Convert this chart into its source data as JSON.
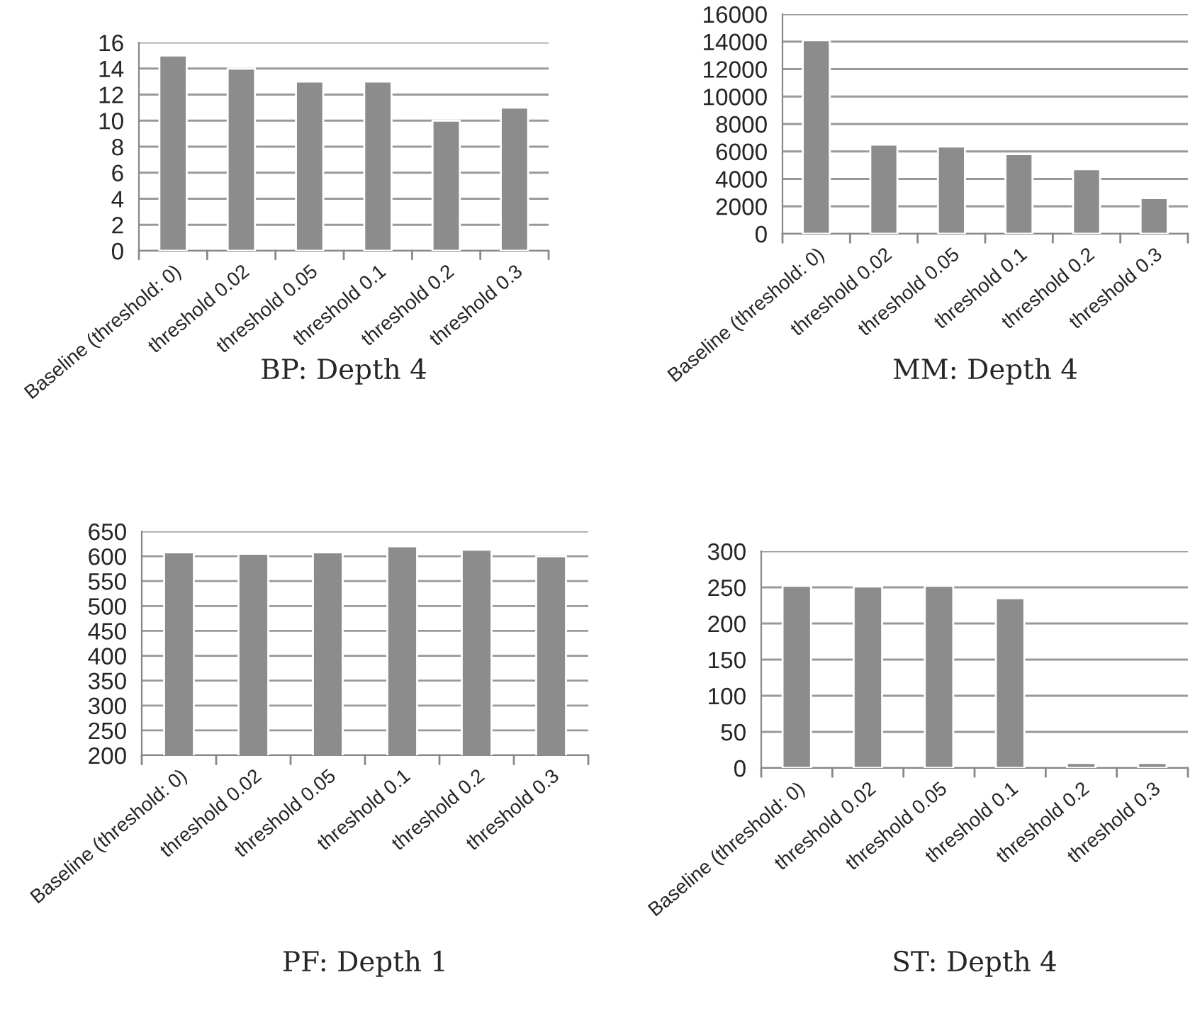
{
  "chart_data": [
    {
      "type": "bar",
      "title": "BP: Depth 4",
      "categories": [
        "Baseline (threshold: 0)",
        "threshold 0.02",
        "threshold 0.05",
        "threshold 0.1",
        "threshold 0.2",
        "threshold 0.3"
      ],
      "values": [
        15,
        14,
        13,
        13,
        10,
        11
      ],
      "color": "#8c8c8c",
      "ylim": [
        0,
        16
      ],
      "yticks": [
        0,
        2,
        4,
        6,
        8,
        10,
        12,
        14,
        16
      ],
      "grid": "y"
    },
    {
      "type": "bar",
      "title": "MM: Depth 4",
      "categories": [
        "Baseline (threshold: 0)",
        "threshold 0.02",
        "threshold 0.05",
        "threshold 0.1",
        "threshold 0.2",
        "threshold 0.3"
      ],
      "values": [
        14100,
        6500,
        6350,
        5800,
        4700,
        2600
      ],
      "color": "#8c8c8c",
      "ylim": [
        0,
        16000
      ],
      "yticks": [
        0,
        2000,
        4000,
        6000,
        8000,
        10000,
        12000,
        14000,
        16000
      ],
      "grid": "y"
    },
    {
      "type": "bar",
      "title": "PF: Depth 1",
      "categories": [
        "Baseline (threshold: 0)",
        "threshold 0.02",
        "threshold 0.05",
        "threshold 0.1",
        "threshold 0.2",
        "threshold 0.3"
      ],
      "values": [
        608,
        605,
        608,
        620,
        613,
        600
      ],
      "color": "#8c8c8c",
      "ylim": [
        200,
        650
      ],
      "yticks": [
        200,
        250,
        300,
        350,
        400,
        450,
        500,
        550,
        600,
        650
      ],
      "grid": "y"
    },
    {
      "type": "bar",
      "title": "ST: Depth 4",
      "categories": [
        "Baseline (threshold: 0)",
        "threshold 0.02",
        "threshold 0.05",
        "threshold 0.1",
        "threshold 0.2",
        "threshold 0.3"
      ],
      "values": [
        252,
        251,
        252,
        235,
        7,
        7
      ],
      "color": "#8c8c8c",
      "ylim": [
        0,
        300
      ],
      "yticks": [
        0,
        50,
        100,
        150,
        200,
        250,
        300
      ],
      "grid": "y"
    }
  ]
}
